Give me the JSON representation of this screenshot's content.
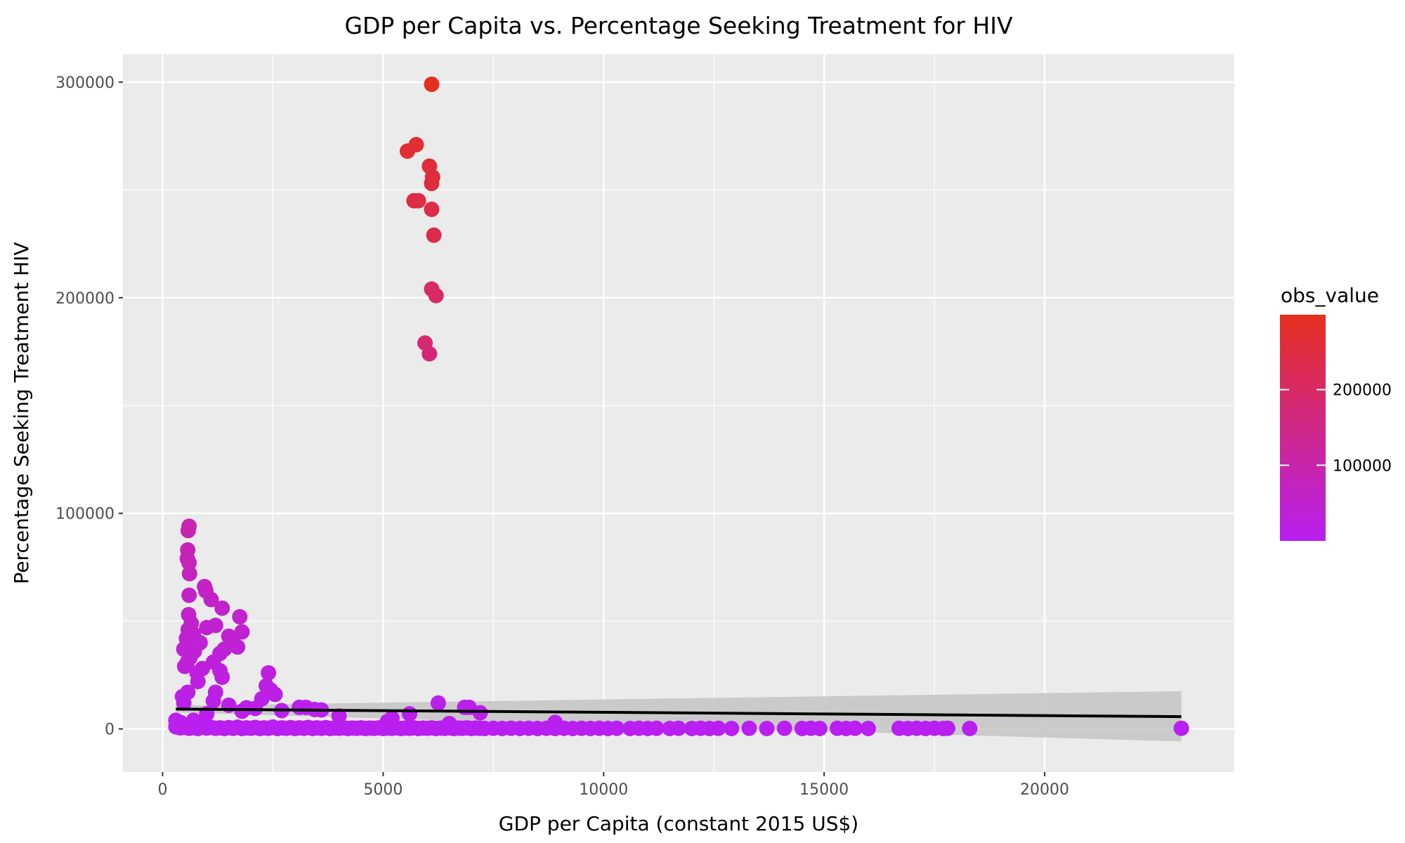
{
  "chart_data": {
    "type": "scatter",
    "title": "GDP per Capita vs. Percentage Seeking Treatment for HIV",
    "xlabel": "GDP per Capita (constant 2015 US$)",
    "ylabel": "Percentage Seeking Treatment HIV",
    "xlim": [
      -900,
      24300
    ],
    "ylim": [
      -20000,
      313000
    ],
    "x_ticks": [
      0,
      5000,
      10000,
      15000,
      20000
    ],
    "y_ticks": [
      0,
      100000,
      200000,
      300000
    ],
    "x_tick_labels": [
      "0",
      "5000",
      "10000",
      "15000",
      "20000"
    ],
    "y_tick_labels": [
      "0",
      "100000",
      "200000",
      "300000"
    ],
    "grid": true,
    "legend": {
      "title": "obs_value",
      "position": "right",
      "labels": [
        "200000",
        "100000"
      ],
      "label_values": [
        200000,
        100000
      ],
      "range": [
        0,
        299000
      ],
      "low_color": "#b91ff1",
      "high_color": "#e52f1e"
    },
    "smooth": {
      "method": "linear",
      "color": "#000000",
      "band_color": "#c4c4c4",
      "line": [
        [
          300,
          9200
        ],
        [
          23100,
          5700
        ]
      ],
      "band_upper": [
        [
          300,
          10800
        ],
        [
          23100,
          17500
        ]
      ],
      "band_lower": [
        [
          300,
          7600
        ],
        [
          23100,
          -5800
        ]
      ]
    },
    "points": [
      [
        6100,
        299000
      ],
      [
        5750,
        271000
      ],
      [
        5550,
        268000
      ],
      [
        6050,
        261000
      ],
      [
        6120,
        256000
      ],
      [
        6100,
        253000
      ],
      [
        5700,
        245000
      ],
      [
        5800,
        245000
      ],
      [
        6100,
        241000
      ],
      [
        6150,
        229000
      ],
      [
        6100,
        204000
      ],
      [
        6200,
        201000
      ],
      [
        5950,
        179000
      ],
      [
        6050,
        174000
      ],
      [
        600,
        94000
      ],
      [
        580,
        92000
      ],
      [
        570,
        83000
      ],
      [
        560,
        79000
      ],
      [
        600,
        77000
      ],
      [
        610,
        72000
      ],
      [
        600,
        62000
      ],
      [
        950,
        66000
      ],
      [
        980,
        64000
      ],
      [
        1100,
        60000
      ],
      [
        1350,
        56000
      ],
      [
        1750,
        52000
      ],
      [
        590,
        53000
      ],
      [
        650,
        49000
      ],
      [
        580,
        46000
      ],
      [
        1000,
        47000
      ],
      [
        1200,
        48000
      ],
      [
        1800,
        45000
      ],
      [
        700,
        44000
      ],
      [
        540,
        42000
      ],
      [
        1500,
        43000
      ],
      [
        1600,
        40000
      ],
      [
        850,
        40000
      ],
      [
        1700,
        38000
      ],
      [
        480,
        37000
      ],
      [
        1400,
        37000
      ],
      [
        720,
        36000
      ],
      [
        1300,
        35000
      ],
      [
        620,
        33000
      ],
      [
        560,
        31000
      ],
      [
        1150,
        31000
      ],
      [
        500,
        29000
      ],
      [
        900,
        28000
      ],
      [
        1300,
        27000
      ],
      [
        780,
        26000
      ],
      [
        2400,
        26000
      ],
      [
        1350,
        24000
      ],
      [
        800,
        22000
      ],
      [
        2350,
        20000
      ],
      [
        2450,
        18000
      ],
      [
        570,
        17000
      ],
      [
        1200,
        17000
      ],
      [
        2550,
        16000
      ],
      [
        450,
        15000
      ],
      [
        2250,
        14000
      ],
      [
        1150,
        13000
      ],
      [
        6250,
        12000
      ],
      [
        480,
        12000
      ],
      [
        1500,
        11000
      ],
      [
        3100,
        10000
      ],
      [
        3250,
        10000
      ],
      [
        6850,
        10000
      ],
      [
        6950,
        10000
      ],
      [
        1900,
        9800
      ],
      [
        2100,
        9500
      ],
      [
        3450,
        9000
      ],
      [
        3600,
        8800
      ],
      [
        2700,
        8500
      ],
      [
        1800,
        8200
      ],
      [
        7200,
        7500
      ],
      [
        5600,
        7000
      ],
      [
        1000,
        7000
      ],
      [
        4000,
        6000
      ],
      [
        5200,
        5000
      ],
      [
        700,
        4000
      ],
      [
        300,
        4000
      ],
      [
        400,
        3000
      ],
      [
        8900,
        3000
      ],
      [
        5100,
        3500
      ],
      [
        6500,
        2500
      ],
      [
        300,
        1000
      ],
      [
        400,
        500
      ],
      [
        500,
        800
      ],
      [
        600,
        300
      ],
      [
        700,
        600
      ],
      [
        800,
        200
      ],
      [
        900,
        900
      ],
      [
        1000,
        400
      ],
      [
        1100,
        700
      ],
      [
        1200,
        300
      ],
      [
        1300,
        500
      ],
      [
        1400,
        200
      ],
      [
        1500,
        600
      ],
      [
        1600,
        300
      ],
      [
        1700,
        800
      ],
      [
        1800,
        200
      ],
      [
        1900,
        500
      ],
      [
        2000,
        300
      ],
      [
        2100,
        700
      ],
      [
        2200,
        200
      ],
      [
        2300,
        500
      ],
      [
        2400,
        300
      ],
      [
        2500,
        900
      ],
      [
        2600,
        200
      ],
      [
        2700,
        500
      ],
      [
        2800,
        300
      ],
      [
        2900,
        600
      ],
      [
        3000,
        200
      ],
      [
        3100,
        500
      ],
      [
        3200,
        300
      ],
      [
        3300,
        700
      ],
      [
        3400,
        200
      ],
      [
        3500,
        500
      ],
      [
        3600,
        300
      ],
      [
        3700,
        600
      ],
      [
        3800,
        200
      ],
      [
        3900,
        400
      ],
      [
        4000,
        300
      ],
      [
        4100,
        500
      ],
      [
        4200,
        200
      ],
      [
        4300,
        400
      ],
      [
        4400,
        300
      ],
      [
        4500,
        500
      ],
      [
        4600,
        200
      ],
      [
        4700,
        400
      ],
      [
        4800,
        300
      ],
      [
        4900,
        500
      ],
      [
        5000,
        200
      ],
      [
        5100,
        400
      ],
      [
        5200,
        300
      ],
      [
        5300,
        500
      ],
      [
        5400,
        200
      ],
      [
        5500,
        400
      ],
      [
        5600,
        300
      ],
      [
        5700,
        500
      ],
      [
        5800,
        200
      ],
      [
        5900,
        400
      ],
      [
        6000,
        300
      ],
      [
        6100,
        500
      ],
      [
        6200,
        200
      ],
      [
        6300,
        400
      ],
      [
        6400,
        300
      ],
      [
        6500,
        500
      ],
      [
        6600,
        200
      ],
      [
        6700,
        400
      ],
      [
        6800,
        300
      ],
      [
        6900,
        500
      ],
      [
        7000,
        200
      ],
      [
        7100,
        400
      ],
      [
        7200,
        300
      ],
      [
        7300,
        200
      ],
      [
        7500,
        300
      ],
      [
        7700,
        200
      ],
      [
        7900,
        300
      ],
      [
        8100,
        200
      ],
      [
        8300,
        300
      ],
      [
        8500,
        200
      ],
      [
        8700,
        300
      ],
      [
        8900,
        200
      ],
      [
        9100,
        300
      ],
      [
        9300,
        200
      ],
      [
        9500,
        300
      ],
      [
        9700,
        200
      ],
      [
        9900,
        300
      ],
      [
        10100,
        200
      ],
      [
        10300,
        300
      ],
      [
        10600,
        200
      ],
      [
        10800,
        300
      ],
      [
        11000,
        200
      ],
      [
        11200,
        300
      ],
      [
        11500,
        200
      ],
      [
        11700,
        300
      ],
      [
        12000,
        200
      ],
      [
        12200,
        300
      ],
      [
        12400,
        200
      ],
      [
        12600,
        300
      ],
      [
        12900,
        200
      ],
      [
        13300,
        300
      ],
      [
        13700,
        200
      ],
      [
        14100,
        300
      ],
      [
        14500,
        200
      ],
      [
        14700,
        300
      ],
      [
        14900,
        200
      ],
      [
        15300,
        300
      ],
      [
        15500,
        200
      ],
      [
        15700,
        300
      ],
      [
        16000,
        200
      ],
      [
        16700,
        300
      ],
      [
        16900,
        200
      ],
      [
        17100,
        300
      ],
      [
        17300,
        200
      ],
      [
        17500,
        300
      ],
      [
        17700,
        200
      ],
      [
        17800,
        300
      ],
      [
        18300,
        200
      ],
      [
        23100,
        300
      ]
    ]
  }
}
